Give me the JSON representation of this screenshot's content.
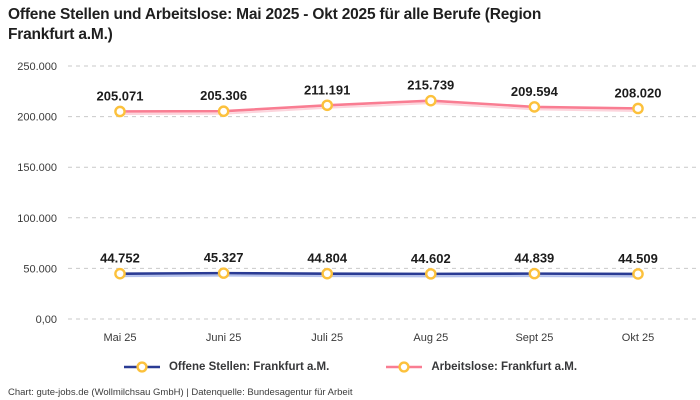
{
  "title": {
    "line1": "Offene Stellen und Arbeitslose: Mai 2025 - Okt 2025 für alle Berufe (Region",
    "line2": "Frankfurt a.M.)"
  },
  "footer": {
    "credit": "Chart: gute-jobs.de (Wollmilchsau GmbH) | Datenquelle: Bundesagentur für Arbeit"
  },
  "chart_data": {
    "type": "line",
    "title": "Offene Stellen und Arbeitslose: Mai 2025 - Okt 2025 für alle Berufe (Region Frankfurt a.M.)",
    "categories": [
      "Mai 25",
      "Juni 25",
      "Juli 25",
      "Aug 25",
      "Sept 25",
      "Okt 25"
    ],
    "series": [
      {
        "name": "Offene Stellen: Frankfurt a.M.",
        "color": "#2a3b94",
        "shadow_color": "#b3c0ec",
        "values": [
          44752,
          45327,
          44804,
          44602,
          44839,
          44509
        ],
        "labels": [
          "44.752",
          "45.327",
          "44.804",
          "44.602",
          "44.839",
          "44.509"
        ]
      },
      {
        "name": "Arbeitslose: Frankfurt a.M.",
        "color": "#f97d92",
        "shadow_color": "#fcd4dc",
        "values": [
          205071,
          205306,
          211191,
          215739,
          209594,
          208020
        ],
        "labels": [
          "205.071",
          "205.306",
          "211.191",
          "215.739",
          "209.594",
          "208.020"
        ]
      }
    ],
    "marker": {
      "ring_color": "#fcc13c",
      "fill": "#ffffff"
    },
    "yaxis": {
      "min": 0,
      "max": 250000,
      "step": 50000,
      "tick_labels": [
        "0,00",
        "50.000",
        "100.000",
        "150.000",
        "200.000",
        "250.000"
      ]
    },
    "grid": {
      "style": "dashed",
      "color": "#c9c9c9"
    },
    "axis_text_color": "#3a3a3a",
    "data_label_color": "#1c1c1c",
    "legend_position": "bottom"
  }
}
